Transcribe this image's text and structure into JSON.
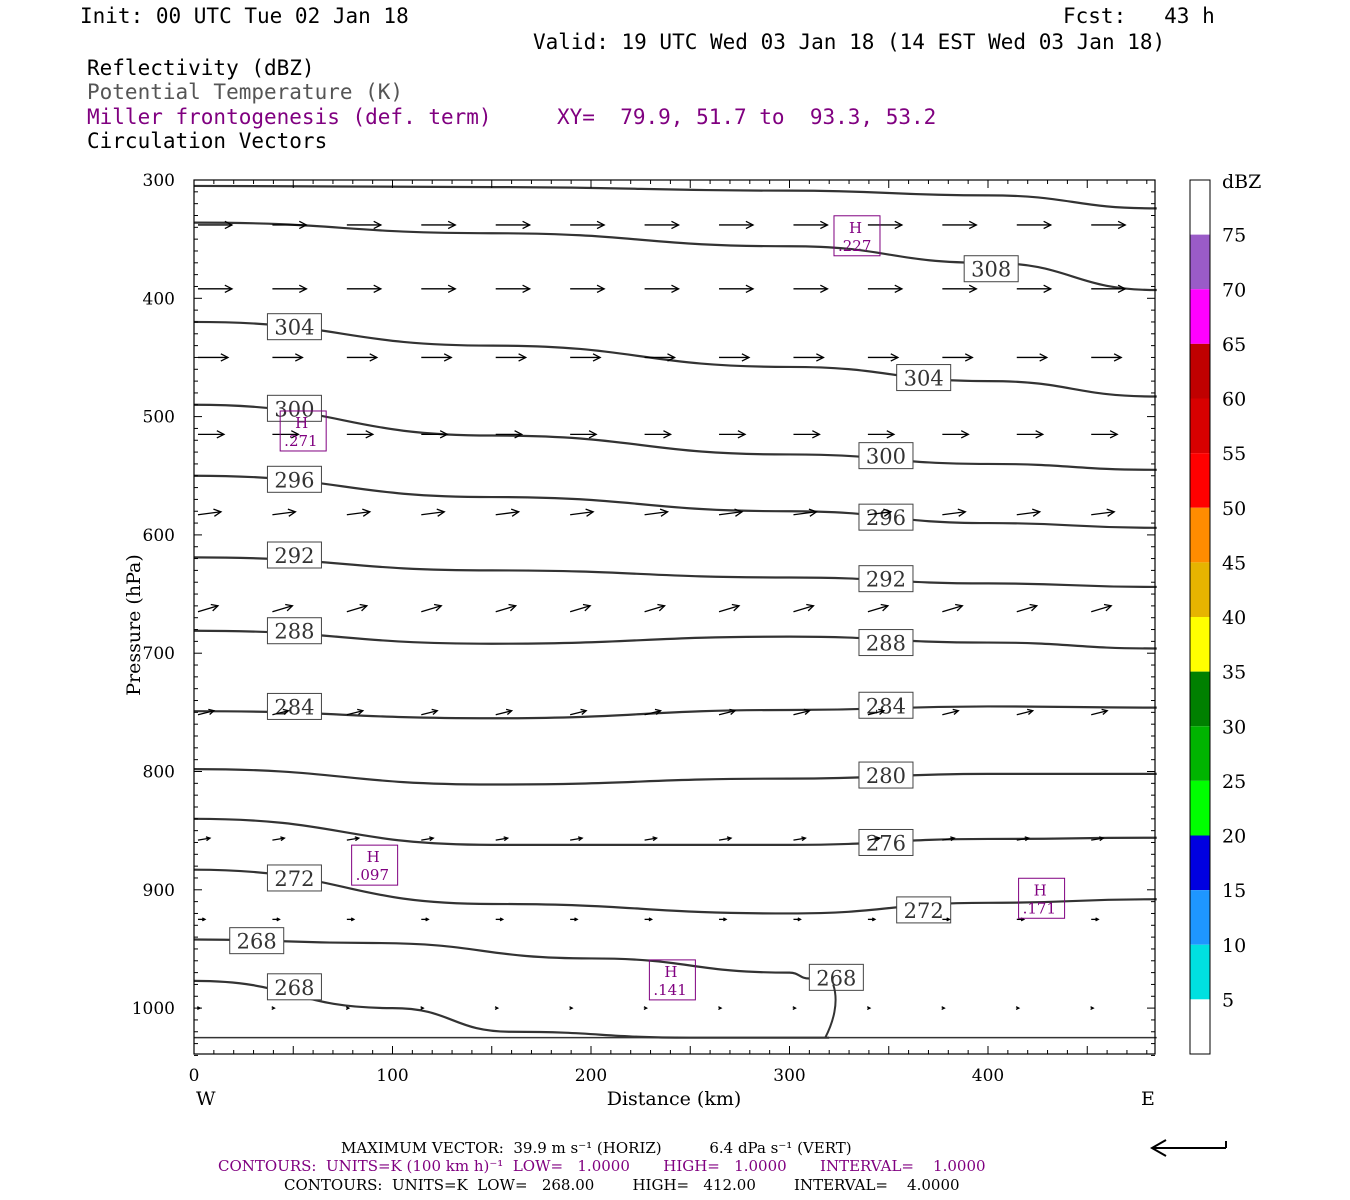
{
  "header": {
    "init": "Init: 00 UTC Tue 02 Jan 18",
    "fcst": "Fcst:   43 h",
    "valid": "Valid: 19 UTC Wed 03 Jan 18 (14 EST Wed 03 Jan 18)",
    "field1": "Reflectivity (dBZ)",
    "field2": "Potential Temperature (K)",
    "field3": "Miller frontogenesis (def. term)",
    "xy": "XY=  79.9, 51.7 to  93.3, 53.2",
    "field4": "Circulation Vectors"
  },
  "colors": {
    "contour": "#333333",
    "purple": "#800080"
  },
  "chart_data": {
    "type": "cross-section",
    "xlabel": "Distance (km)",
    "ylabel": "Pressure (hPa)",
    "xlim": [
      0,
      485
    ],
    "ylim": [
      300,
      1040
    ],
    "x_ticks": [
      "0",
      "100",
      "200",
      "300",
      "400"
    ],
    "y_ticks": [
      "300",
      "400",
      "500",
      "600",
      "700",
      "800",
      "900",
      "1000"
    ],
    "left_label": "W",
    "right_label": "E",
    "colorbar": {
      "unit": "dBZ",
      "labels": [
        "75",
        "70",
        "65",
        "60",
        "55",
        "50",
        "45",
        "40",
        "35",
        "30",
        "25",
        "20",
        "15",
        "10",
        "5"
      ],
      "colors": [
        "#ffffff",
        "#9a5bc8",
        "#ff00ff",
        "#c00000",
        "#d80000",
        "#ff0000",
        "#ff8c00",
        "#e6b400",
        "#ffff00",
        "#008000",
        "#00b400",
        "#00ff00",
        "#0000e0",
        "#1e96ff",
        "#00e0e0",
        "#ffffff"
      ]
    },
    "theta_contours": [
      {
        "level": 308,
        "points": [
          [
            0,
            305
          ],
          [
            150,
            306
          ],
          [
            300,
            309
          ],
          [
            400,
            313
          ],
          [
            485,
            324
          ]
        ],
        "labels": [],
        "boxed": false
      },
      {
        "level": 308,
        "points": [
          [
            0,
            336
          ],
          [
            150,
            345
          ],
          [
            300,
            356
          ],
          [
            400,
            370
          ],
          [
            485,
            393
          ]
        ],
        "labels": [
          {
            "text": "308",
            "x": 388,
            "p": 375
          }
        ],
        "boxed": true
      },
      {
        "level": 304,
        "points": [
          [
            0,
            420
          ],
          [
            150,
            440
          ],
          [
            300,
            458
          ],
          [
            400,
            470
          ],
          [
            485,
            483
          ]
        ],
        "labels": [
          {
            "text": "304",
            "x": 37,
            "p": 424
          },
          {
            "text": "304",
            "x": 354,
            "p": 467
          }
        ],
        "boxed": true
      },
      {
        "level": 300,
        "points": [
          [
            0,
            490
          ],
          [
            150,
            516
          ],
          [
            300,
            532
          ],
          [
            400,
            540
          ],
          [
            485,
            545
          ]
        ],
        "labels": [
          {
            "text": "300",
            "x": 37,
            "p": 493
          },
          {
            "text": "300",
            "x": 335,
            "p": 533
          }
        ],
        "boxed": true
      },
      {
        "level": 296,
        "points": [
          [
            0,
            550
          ],
          [
            150,
            568
          ],
          [
            300,
            580
          ],
          [
            400,
            590
          ],
          [
            485,
            594
          ]
        ],
        "labels": [
          {
            "text": "296",
            "x": 37,
            "p": 553
          },
          {
            "text": "296",
            "x": 335,
            "p": 585
          }
        ],
        "boxed": true
      },
      {
        "level": 292,
        "points": [
          [
            0,
            619
          ],
          [
            150,
            630
          ],
          [
            300,
            636
          ],
          [
            400,
            641
          ],
          [
            485,
            644
          ]
        ],
        "labels": [
          {
            "text": "292",
            "x": 37,
            "p": 617
          },
          {
            "text": "292",
            "x": 335,
            "p": 637
          }
        ],
        "boxed": true
      },
      {
        "level": 288,
        "points": [
          [
            0,
            681
          ],
          [
            150,
            692
          ],
          [
            300,
            686
          ],
          [
            400,
            691
          ],
          [
            485,
            696
          ]
        ],
        "labels": [
          {
            "text": "288",
            "x": 37,
            "p": 681
          },
          {
            "text": "288",
            "x": 335,
            "p": 691
          }
        ],
        "boxed": true
      },
      {
        "level": 284,
        "points": [
          [
            0,
            749
          ],
          [
            150,
            755
          ],
          [
            300,
            748
          ],
          [
            400,
            745
          ],
          [
            485,
            746
          ]
        ],
        "labels": [
          {
            "text": "284",
            "x": 37,
            "p": 745
          },
          {
            "text": "284",
            "x": 335,
            "p": 744
          }
        ],
        "boxed": true
      },
      {
        "level": 280,
        "points": [
          [
            0,
            798
          ],
          [
            150,
            811
          ],
          [
            300,
            806
          ],
          [
            400,
            802
          ],
          [
            485,
            802
          ]
        ],
        "labels": [
          {
            "text": "280",
            "x": 335,
            "p": 803
          }
        ],
        "boxed": true
      },
      {
        "level": 276,
        "points": [
          [
            0,
            840
          ],
          [
            150,
            862
          ],
          [
            300,
            862
          ],
          [
            400,
            857
          ],
          [
            485,
            856
          ]
        ],
        "labels": [
          {
            "text": "276",
            "x": 335,
            "p": 860
          }
        ],
        "boxed": true
      },
      {
        "level": 272,
        "points": [
          [
            0,
            883
          ],
          [
            150,
            912
          ],
          [
            300,
            920
          ],
          [
            400,
            911
          ],
          [
            485,
            908
          ]
        ],
        "labels": [
          {
            "text": "272",
            "x": 37,
            "p": 890
          },
          {
            "text": "272",
            "x": 354,
            "p": 917
          }
        ],
        "boxed": true
      },
      {
        "level": 268,
        "points": [
          [
            0,
            942
          ],
          [
            90,
            945
          ],
          [
            200,
            958
          ],
          [
            300,
            970
          ],
          [
            310,
            975
          ]
        ],
        "labels": [
          {
            "text": "268",
            "x": 18,
            "p": 943
          },
          {
            "text": "268",
            "x": 310,
            "p": 974
          }
        ],
        "boxed": true
      },
      {
        "level": 268,
        "points": [
          [
            0,
            977
          ],
          [
            100,
            1000
          ],
          [
            160,
            1020
          ],
          [
            250,
            1025
          ],
          [
            320,
            1025
          ]
        ],
        "labels": [
          {
            "text": "268",
            "x": 37,
            "p": 982
          }
        ],
        "boxed": true
      }
    ],
    "frontogenesis_maxima": [
      {
        "label": "H",
        "value": ".227",
        "x": 334,
        "p": 348
      },
      {
        "label": "H",
        "value": ".271",
        "x": 55,
        "p": 513
      },
      {
        "label": "H",
        "value": ".097",
        "x": 91,
        "p": 880
      },
      {
        "label": "H",
        "value": ".171",
        "x": 427,
        "p": 908
      },
      {
        "label": "H",
        "value": ".141",
        "x": 241,
        "p": 977
      }
    ],
    "vector_rows": [
      {
        "p": 338,
        "u": 34,
        "w": 0
      },
      {
        "p": 392,
        "u": 34,
        "w": 0
      },
      {
        "p": 450,
        "u": 30,
        "w": 0
      },
      {
        "p": 515,
        "u": 26,
        "w": 0
      },
      {
        "p": 583,
        "u": 23,
        "w": -3
      },
      {
        "p": 665,
        "u": 20,
        "w": -6
      },
      {
        "p": 752,
        "u": 16,
        "w": -4
      },
      {
        "p": 858,
        "u": 12,
        "w": -2
      },
      {
        "p": 925,
        "u": 7,
        "w": 0
      },
      {
        "p": 1000,
        "u": 2,
        "w": 0
      }
    ],
    "max_vector_ref": {
      "horiz": 39.9,
      "vert": 6.4
    }
  },
  "footer": {
    "max_vector": "MAXIMUM VECTOR:  39.9 m s⁻¹ (HORIZ)          6.4 dPa s⁻¹ (VERT)",
    "contours_purple": "CONTOURS:  UNITS=K (100 km h)⁻¹  LOW=   1.0000       HIGH=   1.0000       INTERVAL=    1.0000",
    "contours_black": "CONTOURS:  UNITS=K  LOW=   268.00        HIGH=   412.00        INTERVAL=    4.0000"
  }
}
